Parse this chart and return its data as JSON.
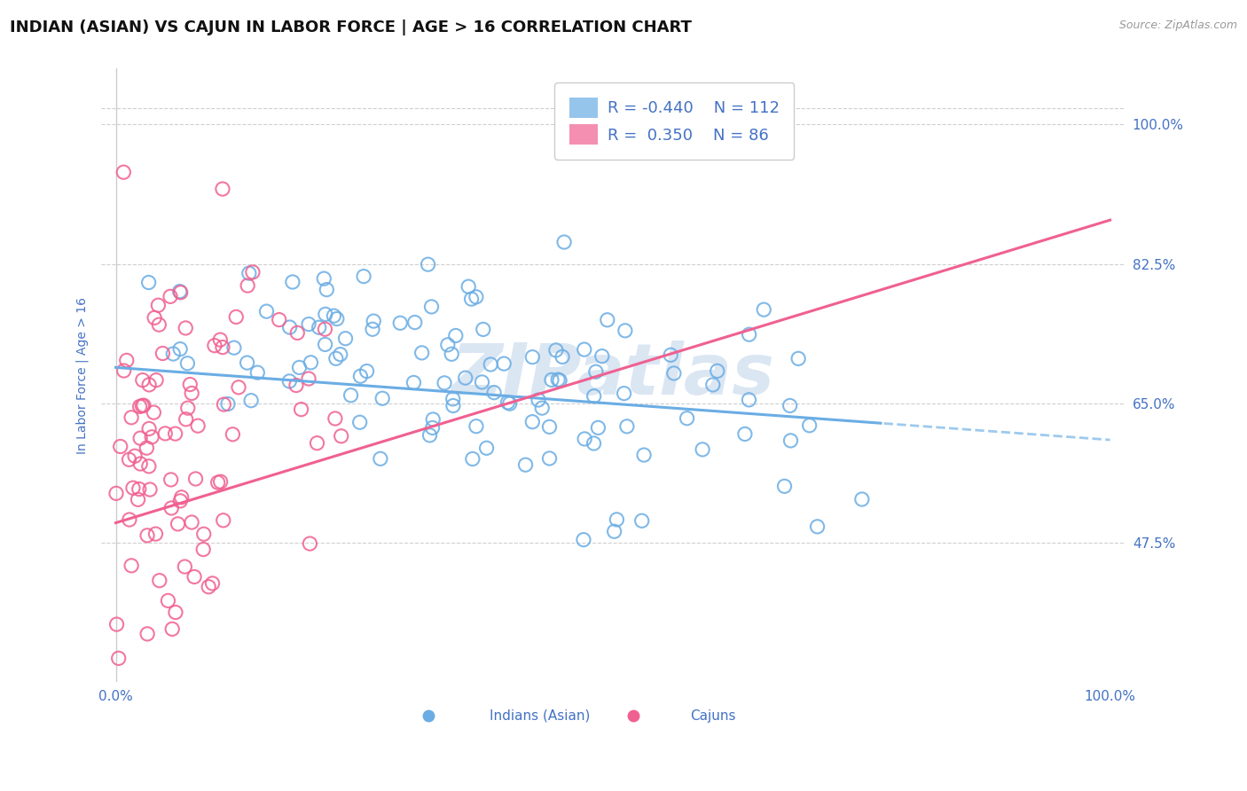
{
  "title": "INDIAN (ASIAN) VS CAJUN IN LABOR FORCE | AGE > 16 CORRELATION CHART",
  "source_text": "Source: ZipAtlas.com",
  "ylabel": "In Labor Force | Age > 16",
  "xlim": [
    0.0,
    1.0
  ],
  "ylim": [
    0.3,
    1.07
  ],
  "yticks": [
    0.475,
    0.65,
    0.825,
    1.0
  ],
  "ytick_labels": [
    "47.5%",
    "65.0%",
    "82.5%",
    "100.0%"
  ],
  "xtick_labels": [
    "0.0%",
    "100.0%"
  ],
  "xticks": [
    0.0,
    1.0
  ],
  "blue_color": "#6aade4",
  "pink_color": "#f06090",
  "blue_R": -0.44,
  "blue_N": 112,
  "pink_R": 0.35,
  "pink_N": 86,
  "legend_label_blue": "Indians (Asian)",
  "legend_label_pink": "Cajuns",
  "watermark": "ZIPatlas",
  "title_color": "#111111",
  "axis_label_color": "#4472c4",
  "tick_label_color": "#4472c4",
  "background_color": "#ffffff",
  "grid_color": "#bbbbbb",
  "title_fontsize": 13,
  "axis_label_fontsize": 10,
  "tick_fontsize": 11,
  "legend_fontsize": 13
}
